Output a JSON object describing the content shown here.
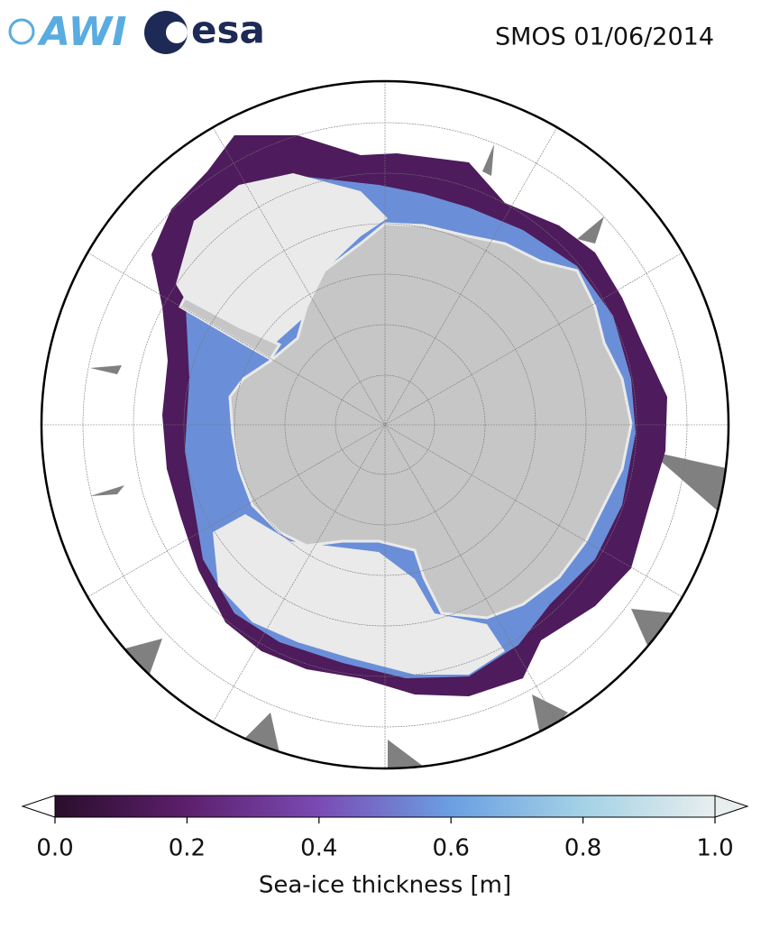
{
  "header": {
    "logos": [
      "AWI",
      "esa"
    ],
    "title": "SMOS 01/06/2014"
  },
  "colorbar": {
    "label": "Sea-ice thickness [m]",
    "clim": [
      0,
      1
    ],
    "ticks": [
      {
        "value": 0,
        "label": "0.0"
      },
      0.2,
      0.4,
      0.6,
      0.8,
      {
        "value": 1,
        "label": "1.0"
      }
    ],
    "colors": [
      "#2a0e2c",
      "#5c1f6c",
      "#7a4bb4",
      "#6b9fe2",
      "#a3d2e6",
      "#e8eeee"
    ]
  }
}
